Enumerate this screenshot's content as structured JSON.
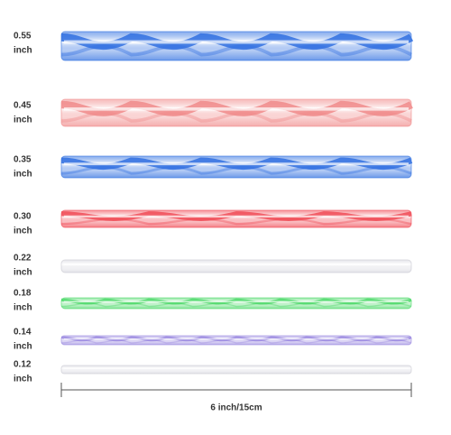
{
  "rods": [
    {
      "size": "0.55",
      "unit": "inch"
    },
    {
      "size": "0.45",
      "unit": "inch"
    },
    {
      "size": "0.35",
      "unit": "inch"
    },
    {
      "size": "0.30",
      "unit": "inch"
    },
    {
      "size": "0.22",
      "unit": "inch"
    },
    {
      "size": "0.18",
      "unit": "inch"
    },
    {
      "size": "0.14",
      "unit": "inch"
    },
    {
      "size": "0.12",
      "unit": "inch"
    }
  ],
  "length": "6 inch/15cm"
}
